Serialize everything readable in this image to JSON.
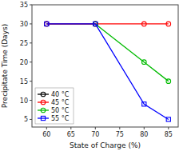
{
  "chart_data": {
    "type": "line",
    "xlabel": "State of Charge (%)",
    "ylabel": "Precipitate Time (Days)",
    "series": [
      {
        "name": "40 °C",
        "color": "#000000",
        "marker": "circle",
        "x": [
          60,
          70
        ],
        "values": [
          30,
          30
        ]
      },
      {
        "name": "45 °C",
        "color": "#ff0000",
        "marker": "circle",
        "x": [
          60,
          70,
          80,
          85
        ],
        "values": [
          30,
          30,
          30,
          30
        ]
      },
      {
        "name": "50 °C",
        "color": "#00bb00",
        "marker": "circle",
        "x": [
          70,
          80,
          85
        ],
        "values": [
          30,
          20,
          15
        ]
      },
      {
        "name": "55 °C",
        "color": "#0000ff",
        "marker": "square",
        "x": [
          60,
          70,
          80,
          85
        ],
        "values": [
          30,
          30,
          9,
          5
        ]
      }
    ],
    "xlim": [
      57,
      87
    ],
    "ylim": [
      3,
      35
    ],
    "xticks": [
      60,
      65,
      70,
      75,
      80,
      85
    ],
    "yticks": [
      5,
      10,
      15,
      20,
      25,
      30,
      35
    ],
    "grid": false,
    "legend": "lower left"
  }
}
